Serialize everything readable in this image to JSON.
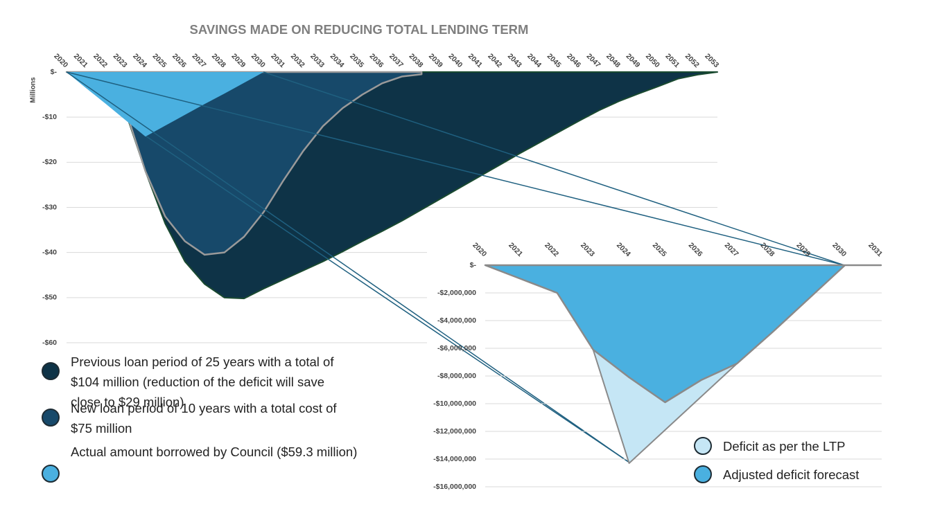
{
  "chart_data": [
    {
      "type": "area",
      "title": "SAVINGS MADE ON REDUCING TOTAL LENDING TERM",
      "y_label": "Millions",
      "categories": [
        "2020",
        "2021",
        "2022",
        "2023",
        "2024",
        "2025",
        "2026",
        "2027",
        "2028",
        "2029",
        "2030",
        "2031",
        "2032",
        "2033",
        "2034",
        "2035",
        "2036",
        "2037",
        "2038",
        "2039",
        "2040",
        "2041",
        "2042",
        "2043",
        "2044",
        "2045",
        "2046",
        "2047",
        "2048",
        "2049",
        "2050",
        "2051",
        "2052",
        "2053"
      ],
      "ylim": [
        -60,
        0
      ],
      "yticks": [
        {
          "value": 0,
          "label": "$-"
        },
        {
          "value": -10,
          "label": "-$10"
        },
        {
          "value": -20,
          "label": "-$20"
        },
        {
          "value": -30,
          "label": "-$30"
        },
        {
          "value": -40,
          "label": "-$40"
        },
        {
          "value": -50,
          "label": "-$50"
        },
        {
          "value": -60,
          "label": "-$60"
        }
      ],
      "grid": true,
      "series": [
        {
          "name": "Previous loan period of 25 years with a total of $104 million (reduction of the deficit will save close to $29 million)",
          "color": "#0e3347",
          "values": [
            0,
            -1,
            -3,
            -9,
            -22,
            -33.6,
            -42,
            -47,
            -50,
            -50.2,
            -48,
            -46,
            -44,
            -42,
            -39.8,
            -37.5,
            -35.3,
            -33,
            -30.5,
            -28,
            -25.5,
            -23,
            -20.5,
            -18,
            -15.6,
            -13.2,
            -10.8,
            -8.5,
            -6.5,
            -4.8,
            -3.2,
            -1.5,
            -0.6,
            0
          ]
        },
        {
          "name": "New loan period of 10 years with a total cost of $75 million",
          "color": "#17496a",
          "values": [
            0,
            -1,
            -2.5,
            -8.5,
            -22,
            -32,
            -37.5,
            -40.5,
            -40,
            -36.5,
            -31,
            -24,
            -17.5,
            -12,
            -8,
            -5,
            -2.5,
            -1,
            -0.5,
            null,
            null,
            null,
            null,
            null,
            null,
            null,
            null,
            null,
            null,
            null,
            null,
            null,
            null,
            null
          ]
        },
        {
          "name": "Actual amount borrowed by Council ($59.3 million)",
          "color": "#4ab0e0",
          "values": [
            0,
            -3.6,
            -7.1,
            -10.7,
            -14.3,
            -11.9,
            -9.5,
            -7.1,
            -4.8,
            -2.4,
            0,
            null,
            null,
            null,
            null,
            null,
            null,
            null,
            null,
            null,
            null,
            null,
            null,
            null,
            null,
            null,
            null,
            null,
            null,
            null,
            null,
            null,
            null,
            null
          ]
        }
      ]
    },
    {
      "type": "area",
      "categories": [
        "2020",
        "2021",
        "2022",
        "2023",
        "2024",
        "2025",
        "2026",
        "2027",
        "2028",
        "2029",
        "2030",
        "2031"
      ],
      "ylim": [
        -16000000,
        0
      ],
      "yticks": [
        {
          "value": 0,
          "label": "$-"
        },
        {
          "value": -2000000,
          "label": "-$2,000,000"
        },
        {
          "value": -4000000,
          "label": "-$4,000,000"
        },
        {
          "value": -6000000,
          "label": "-$6,000,000"
        },
        {
          "value": -8000000,
          "label": "-$8,000,000"
        },
        {
          "value": -10000000,
          "label": "-$10,000,000"
        },
        {
          "value": -12000000,
          "label": "-$12,000,000"
        },
        {
          "value": -14000000,
          "label": "-$14,000,000"
        },
        {
          "value": -16000000,
          "label": "-$16,000,000"
        }
      ],
      "grid": true,
      "series": [
        {
          "name": "Deficit as per the LTP",
          "color": "#c5e6f5",
          "values": [
            0,
            -1000000,
            -2000000,
            -6100000,
            -14300000,
            -11900000,
            -9500000,
            -7100000,
            -4800000,
            -2400000,
            0,
            0
          ]
        },
        {
          "name": "Adjusted deficit forecast",
          "color": "#4ab0e0",
          "values": [
            0,
            -1000000,
            -2000000,
            -6100000,
            -8100000,
            -9900000,
            -8300000,
            -7100000,
            -4800000,
            -2400000,
            0,
            0
          ]
        }
      ]
    }
  ]
}
